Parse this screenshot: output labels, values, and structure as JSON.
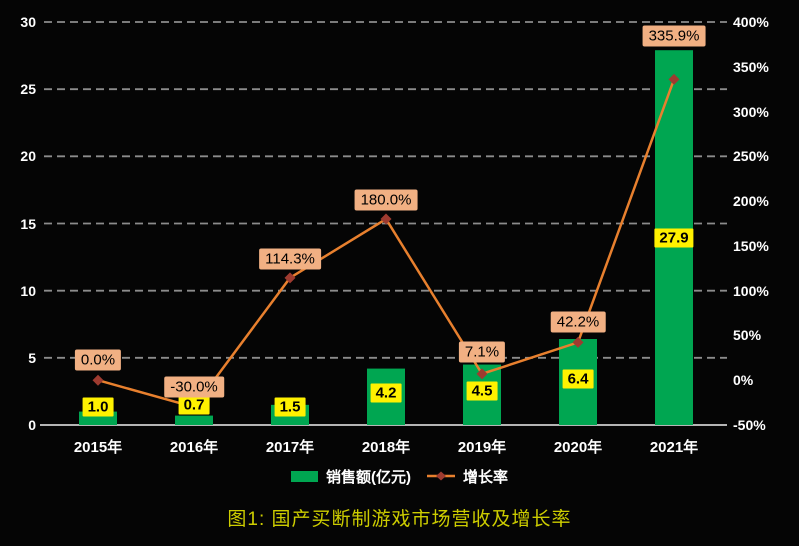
{
  "chart_data": {
    "type": "bar",
    "subtype": "bar-line-combo-dual-axis",
    "categories": [
      "2015年",
      "2016年",
      "2017年",
      "2018年",
      "2019年",
      "2020年",
      "2021年"
    ],
    "series": [
      {
        "name": "销售额(亿元)",
        "chart": "bar",
        "axis": "left",
        "values": [
          1.0,
          0.7,
          1.5,
          4.2,
          4.5,
          6.4,
          27.9
        ],
        "data_labels": [
          "1.0",
          "0.7",
          "1.5",
          "4.2",
          "4.5",
          "6.4",
          "27.9"
        ]
      },
      {
        "name": "增长率",
        "chart": "line",
        "axis": "right",
        "values": [
          0.0,
          -30.0,
          114.3,
          180.0,
          7.1,
          42.2,
          335.9
        ],
        "data_labels": [
          "0.0%",
          "-30.0%",
          "114.3%",
          "180.0%",
          "7.1%",
          "42.2%",
          "335.9%"
        ]
      }
    ],
    "left_axis": {
      "min": 0,
      "max": 30,
      "step": 5,
      "ticks": [
        "0",
        "5",
        "10",
        "15",
        "20",
        "25",
        "30"
      ]
    },
    "right_axis": {
      "min": -50,
      "max": 400,
      "step": 50,
      "ticks": [
        "-50%",
        "0%",
        "50%",
        "100%",
        "150%",
        "200%",
        "250%",
        "300%",
        "350%",
        "400%"
      ]
    },
    "grid": "horizontal-dashed-at-left-ticks",
    "legend_position": "bottom-center",
    "bar_label_y": [
      407,
      405,
      407,
      393,
      391,
      379,
      238
    ],
    "growth_label_dy": [
      -20,
      -20,
      -19,
      -19,
      -22,
      -20,
      -43
    ]
  },
  "legend": {
    "items": [
      {
        "label": "销售额(亿元)",
        "swatch": "bar"
      },
      {
        "label": "增长率",
        "swatch": "line-diamond"
      }
    ]
  },
  "caption": {
    "text": "图1: 国产买断制游戏市场营收及增长率"
  },
  "colors": {
    "background": "#050505",
    "bar": "#00a651",
    "bar_label_bg": "#fff100",
    "line": "#e8802e",
    "marker": "#9e3b30",
    "growth_label_bg": "#f1b083",
    "grid": "#8c8c8c",
    "axis_line": "#b5b5b5",
    "axis_text": "#ffffff",
    "legend_text": "#ffffff",
    "label_text": "#000000",
    "caption": "#cdcd00"
  }
}
